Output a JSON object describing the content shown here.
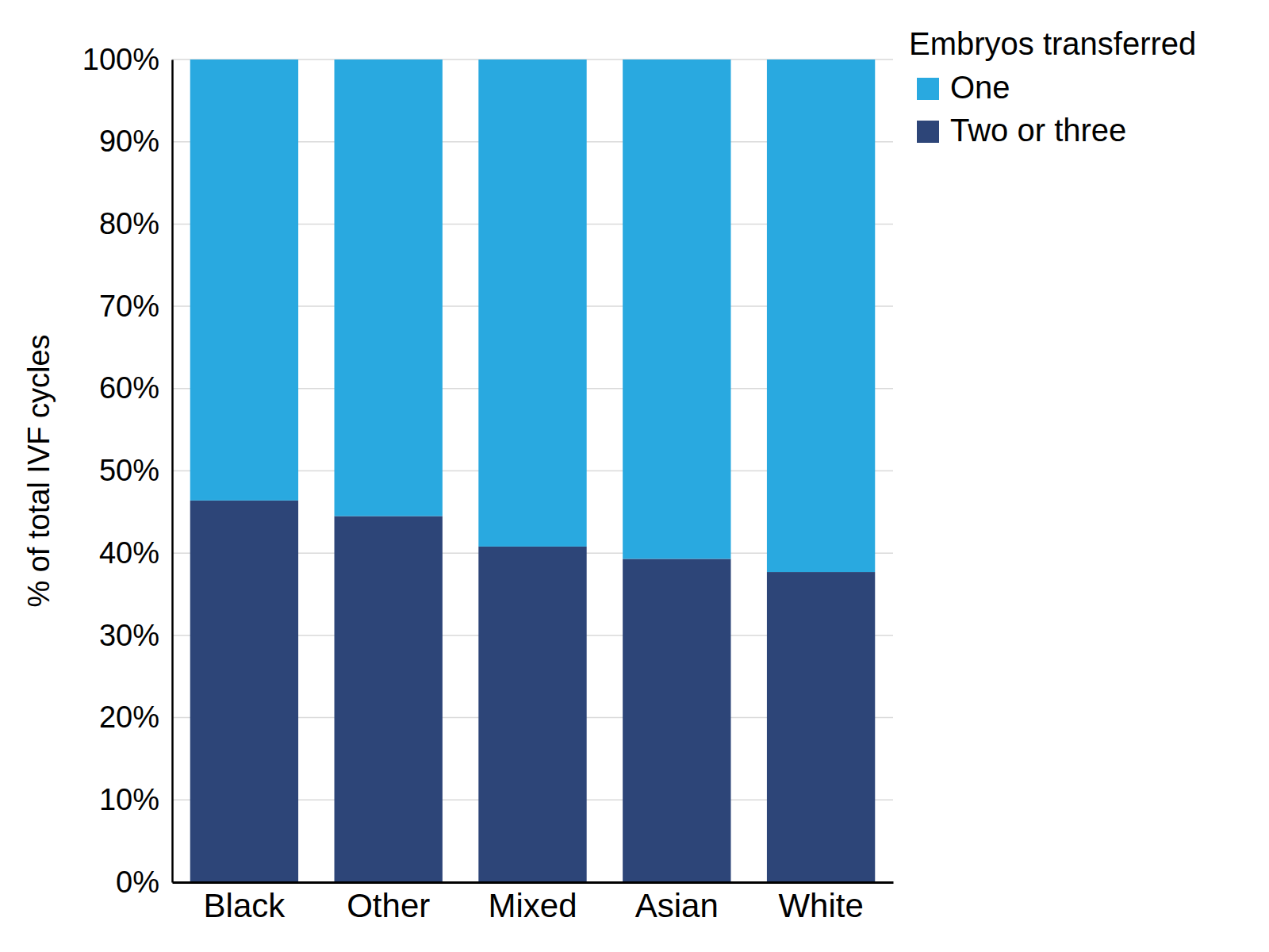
{
  "chart_data": {
    "type": "bar",
    "stacked": true,
    "y_label": "% of total IVF cycles",
    "legend_title": "Embryos transferred",
    "legend": "right",
    "grid": true,
    "categories": [
      "Black",
      "Other",
      "Mixed",
      "Asian",
      "White"
    ],
    "series": [
      {
        "name": "One",
        "color": "#29a9e0",
        "values": [
          53.6,
          55.5,
          59.2,
          60.7,
          62.3
        ]
      },
      {
        "name": "Two or three",
        "color": "#2d4578",
        "values": [
          46.4,
          44.5,
          40.8,
          39.3,
          37.7
        ]
      }
    ],
    "ylim": [
      0,
      100
    ],
    "yticks": [
      {
        "value": 0,
        "label": "0%"
      },
      {
        "value": 10,
        "label": "10%"
      },
      {
        "value": 20,
        "label": "20%"
      },
      {
        "value": 30,
        "label": "30%"
      },
      {
        "value": 40,
        "label": "40%"
      },
      {
        "value": 50,
        "label": "50%"
      },
      {
        "value": 60,
        "label": "60%"
      },
      {
        "value": 70,
        "label": "70%"
      },
      {
        "value": 80,
        "label": "80%"
      },
      {
        "value": 90,
        "label": "90%"
      },
      {
        "value": 100,
        "label": "100%"
      }
    ]
  }
}
